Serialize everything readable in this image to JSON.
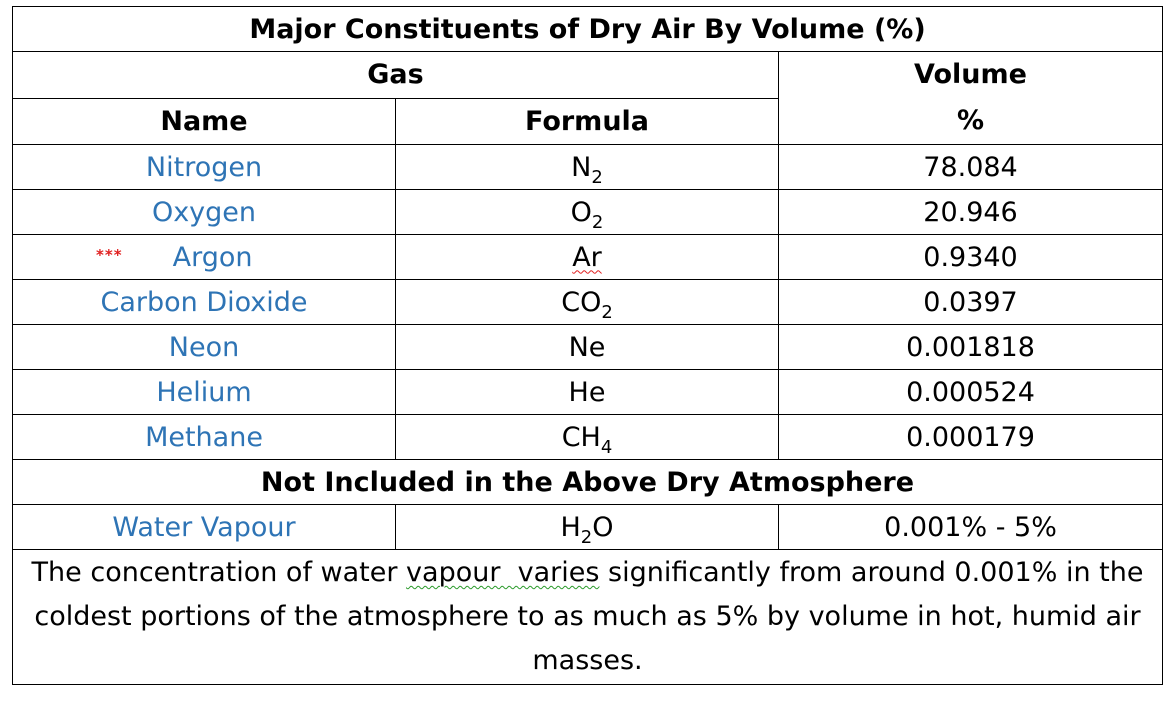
{
  "table": {
    "title": "Major Constituents of Dry Air By Volume (%)",
    "gas_header": "Gas",
    "volume_header_line1": "Volume",
    "volume_header_line2": "%",
    "name_header": "Name",
    "formula_header": "Formula",
    "rows": [
      {
        "name": "Nitrogen",
        "formula_base": "N",
        "formula_sub": "2",
        "volume": "78.084"
      },
      {
        "name": "Oxygen",
        "formula_base": "O",
        "formula_sub": "2",
        "volume": "20.946"
      },
      {
        "name": "Argon",
        "formula_base": "Ar",
        "formula_sub": "",
        "volume": "0.9340",
        "marker": "***"
      },
      {
        "name": "Carbon Dioxide",
        "formula_base": "CO",
        "formula_sub": "2",
        "volume": "0.0397"
      },
      {
        "name": "Neon",
        "formula_base": "Ne",
        "formula_sub": "",
        "volume": "0.001818"
      },
      {
        "name": "Helium",
        "formula_base": "He",
        "formula_sub": "",
        "volume": "0.000524"
      },
      {
        "name": "Methane",
        "formula_base": "CH",
        "formula_sub": "4",
        "volume": "0.000179"
      }
    ],
    "excluded_header": "Not Included in the Above Dry Atmosphere",
    "water": {
      "name": "Water Vapour",
      "formula_base": "H",
      "formula_sub": "2",
      "formula_tail": "O",
      "volume": "0.001% - 5%"
    },
    "note": {
      "part1": "The concentration of water ",
      "part2_flagged": "vapour  varies",
      "part3": " significantly from around 0.001% in the coldest portions of the atmosphere to as much as 5% by volume in hot, humid air masses."
    },
    "colors": {
      "name_text": "#2e74b5",
      "marker": "#e02020",
      "border": "#000000"
    }
  }
}
